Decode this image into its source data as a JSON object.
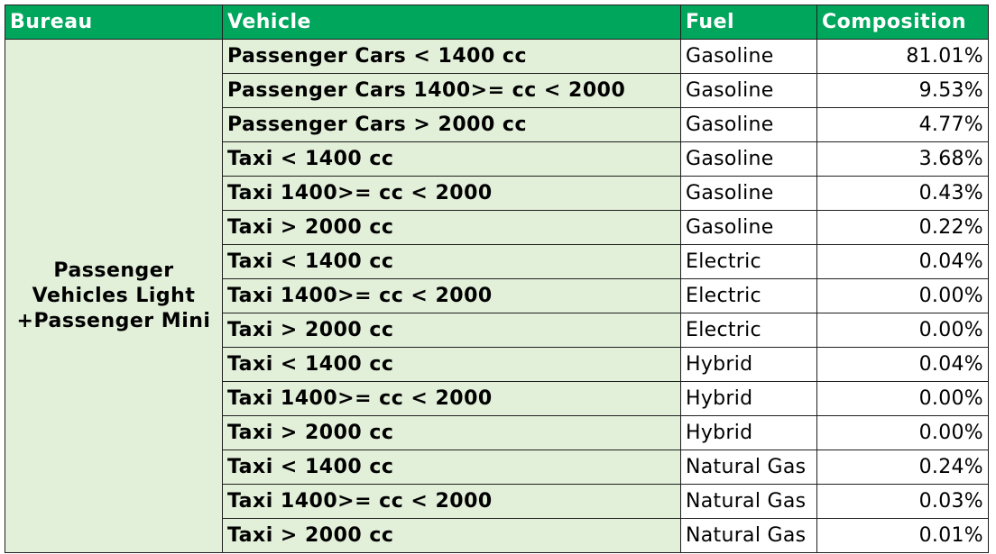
{
  "colors": {
    "header_bg": "#00a65c",
    "header_text": "#ffffff",
    "label_bg": "#e2efd9",
    "border": "#1f1f1f"
  },
  "table": {
    "headers": [
      "Bureau",
      "Vehicle",
      "Fuel",
      "Composition"
    ],
    "bureau": "Passenger Vehicles Light +Passenger Mini",
    "rows": [
      {
        "vehicle": "Passenger Cars < 1400 cc",
        "fuel": "Gasoline",
        "composition": "81.01%"
      },
      {
        "vehicle": "Passenger Cars 1400>= cc < 2000",
        "fuel": "Gasoline",
        "composition": "9.53%"
      },
      {
        "vehicle": "Passenger Cars > 2000 cc",
        "fuel": "Gasoline",
        "composition": "4.77%"
      },
      {
        "vehicle": "Taxi < 1400 cc",
        "fuel": "Gasoline",
        "composition": "3.68%"
      },
      {
        "vehicle": "Taxi 1400>= cc < 2000",
        "fuel": "Gasoline",
        "composition": "0.43%"
      },
      {
        "vehicle": "Taxi > 2000 cc",
        "fuel": "Gasoline",
        "composition": "0.22%"
      },
      {
        "vehicle": "Taxi < 1400 cc",
        "fuel": "Electric",
        "composition": "0.04%"
      },
      {
        "vehicle": "Taxi 1400>= cc < 2000",
        "fuel": "Electric",
        "composition": "0.00%"
      },
      {
        "vehicle": "Taxi > 2000 cc",
        "fuel": "Electric",
        "composition": "0.00%"
      },
      {
        "vehicle": "Taxi < 1400 cc",
        "fuel": "Hybrid",
        "composition": "0.04%"
      },
      {
        "vehicle": "Taxi 1400>= cc < 2000",
        "fuel": "Hybrid",
        "composition": "0.00%"
      },
      {
        "vehicle": "Taxi > 2000 cc",
        "fuel": "Hybrid",
        "composition": "0.00%"
      },
      {
        "vehicle": "Taxi < 1400 cc",
        "fuel": "Natural Gas",
        "composition": "0.24%"
      },
      {
        "vehicle": "Taxi 1400>= cc < 2000",
        "fuel": "Natural Gas",
        "composition": "0.03%"
      },
      {
        "vehicle": "Taxi > 2000 cc",
        "fuel": "Natural Gas",
        "composition": "0.01%"
      }
    ]
  }
}
